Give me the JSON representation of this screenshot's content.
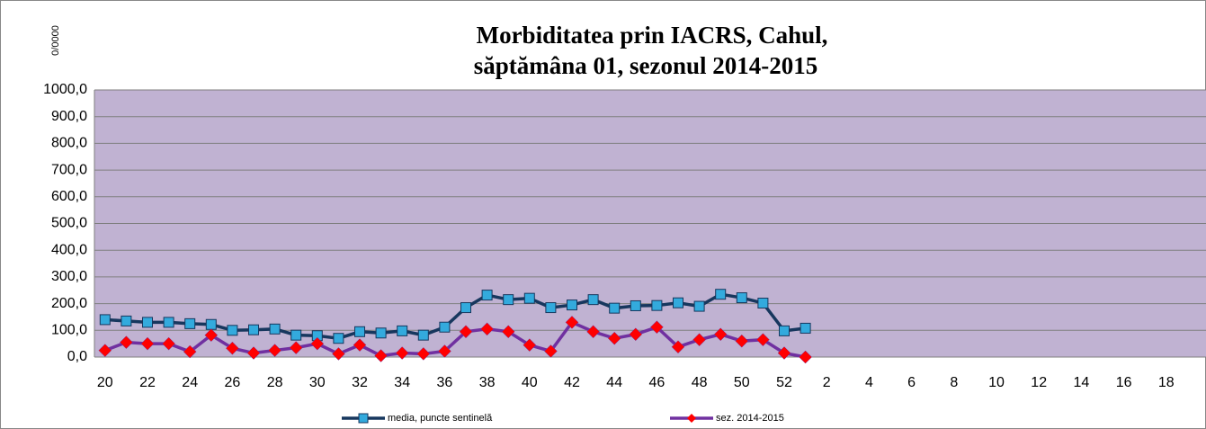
{
  "chart_data": {
    "type": "line",
    "title": "Morbiditatea prin IACRS, Cahul,",
    "subtitle": "săptămâna 01, sezonul  2014-2015",
    "y_label": "0/0000",
    "categories": [
      20,
      null,
      22,
      null,
      24,
      null,
      26,
      null,
      28,
      null,
      30,
      null,
      32,
      null,
      34,
      null,
      36,
      null,
      38,
      null,
      40,
      null,
      42,
      null,
      44,
      null,
      46,
      null,
      48,
      null,
      50,
      null,
      52,
      null,
      2,
      null,
      4,
      null,
      6,
      null,
      8,
      null,
      10,
      null,
      12,
      null,
      14,
      null,
      16,
      null,
      18,
      null
    ],
    "series": [
      {
        "name": "media, puncte sentinelă",
        "color": "#17375e",
        "marker_color": "#33aadd",
        "marker": "square",
        "values": [
          140,
          135,
          130,
          130,
          125,
          122,
          100,
          102,
          105,
          82,
          80,
          70,
          95,
          90,
          98,
          82,
          112,
          185,
          232,
          215,
          220,
          185,
          195,
          215,
          183,
          192,
          193,
          203,
          190,
          235,
          222,
          202,
          98,
          108,
          null,
          null,
          null,
          null,
          null,
          null,
          null,
          null,
          null,
          null,
          null,
          null,
          null,
          null,
          null,
          null,
          null,
          null
        ]
      },
      {
        "name": "sez. 2014-2015",
        "color": "#7030a0",
        "marker_color": "#ff0000",
        "marker": "diamond",
        "values": [
          25,
          55,
          50,
          50,
          20,
          82,
          33,
          15,
          25,
          35,
          50,
          12,
          45,
          5,
          15,
          12,
          22,
          95,
          105,
          95,
          45,
          22,
          130,
          95,
          70,
          85,
          112,
          38,
          65,
          85,
          60,
          65,
          15,
          0,
          null,
          null,
          null,
          null,
          null,
          null,
          null,
          null,
          null,
          null,
          null,
          null,
          null,
          null,
          null,
          null,
          null,
          null
        ]
      }
    ],
    "ylim": [
      0,
      1000
    ],
    "yticks": [
      {
        "value": 0,
        "label": "0,0"
      },
      {
        "value": 100,
        "label": "100,0"
      },
      {
        "value": 200,
        "label": "200,0"
      },
      {
        "value": 300,
        "label": "300,0"
      },
      {
        "value": 400,
        "label": "400,0"
      },
      {
        "value": 500,
        "label": "500,0"
      },
      {
        "value": 600,
        "label": "600,0"
      },
      {
        "value": 700,
        "label": "700,0"
      },
      {
        "value": 800,
        "label": "800,0"
      },
      {
        "value": 900,
        "label": "900,0"
      },
      {
        "value": 1000,
        "label": "1000,0"
      }
    ],
    "grid": true,
    "plot_background": "#c0b2d2",
    "legend": "bottom"
  }
}
